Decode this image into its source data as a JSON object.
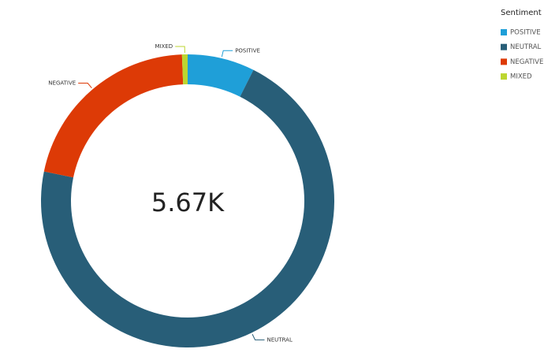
{
  "chart_data": {
    "type": "donut",
    "center_label": "5.67K",
    "legend_title": "Sentiment",
    "categories": [
      "POSITIVE",
      "NEUTRAL",
      "NEGATIVE",
      "MIXED"
    ],
    "values": [
      420,
      4015,
      1200,
      35
    ],
    "colors": [
      "#1f9fd8",
      "#285e78",
      "#dd3a06",
      "#bcd630"
    ]
  }
}
